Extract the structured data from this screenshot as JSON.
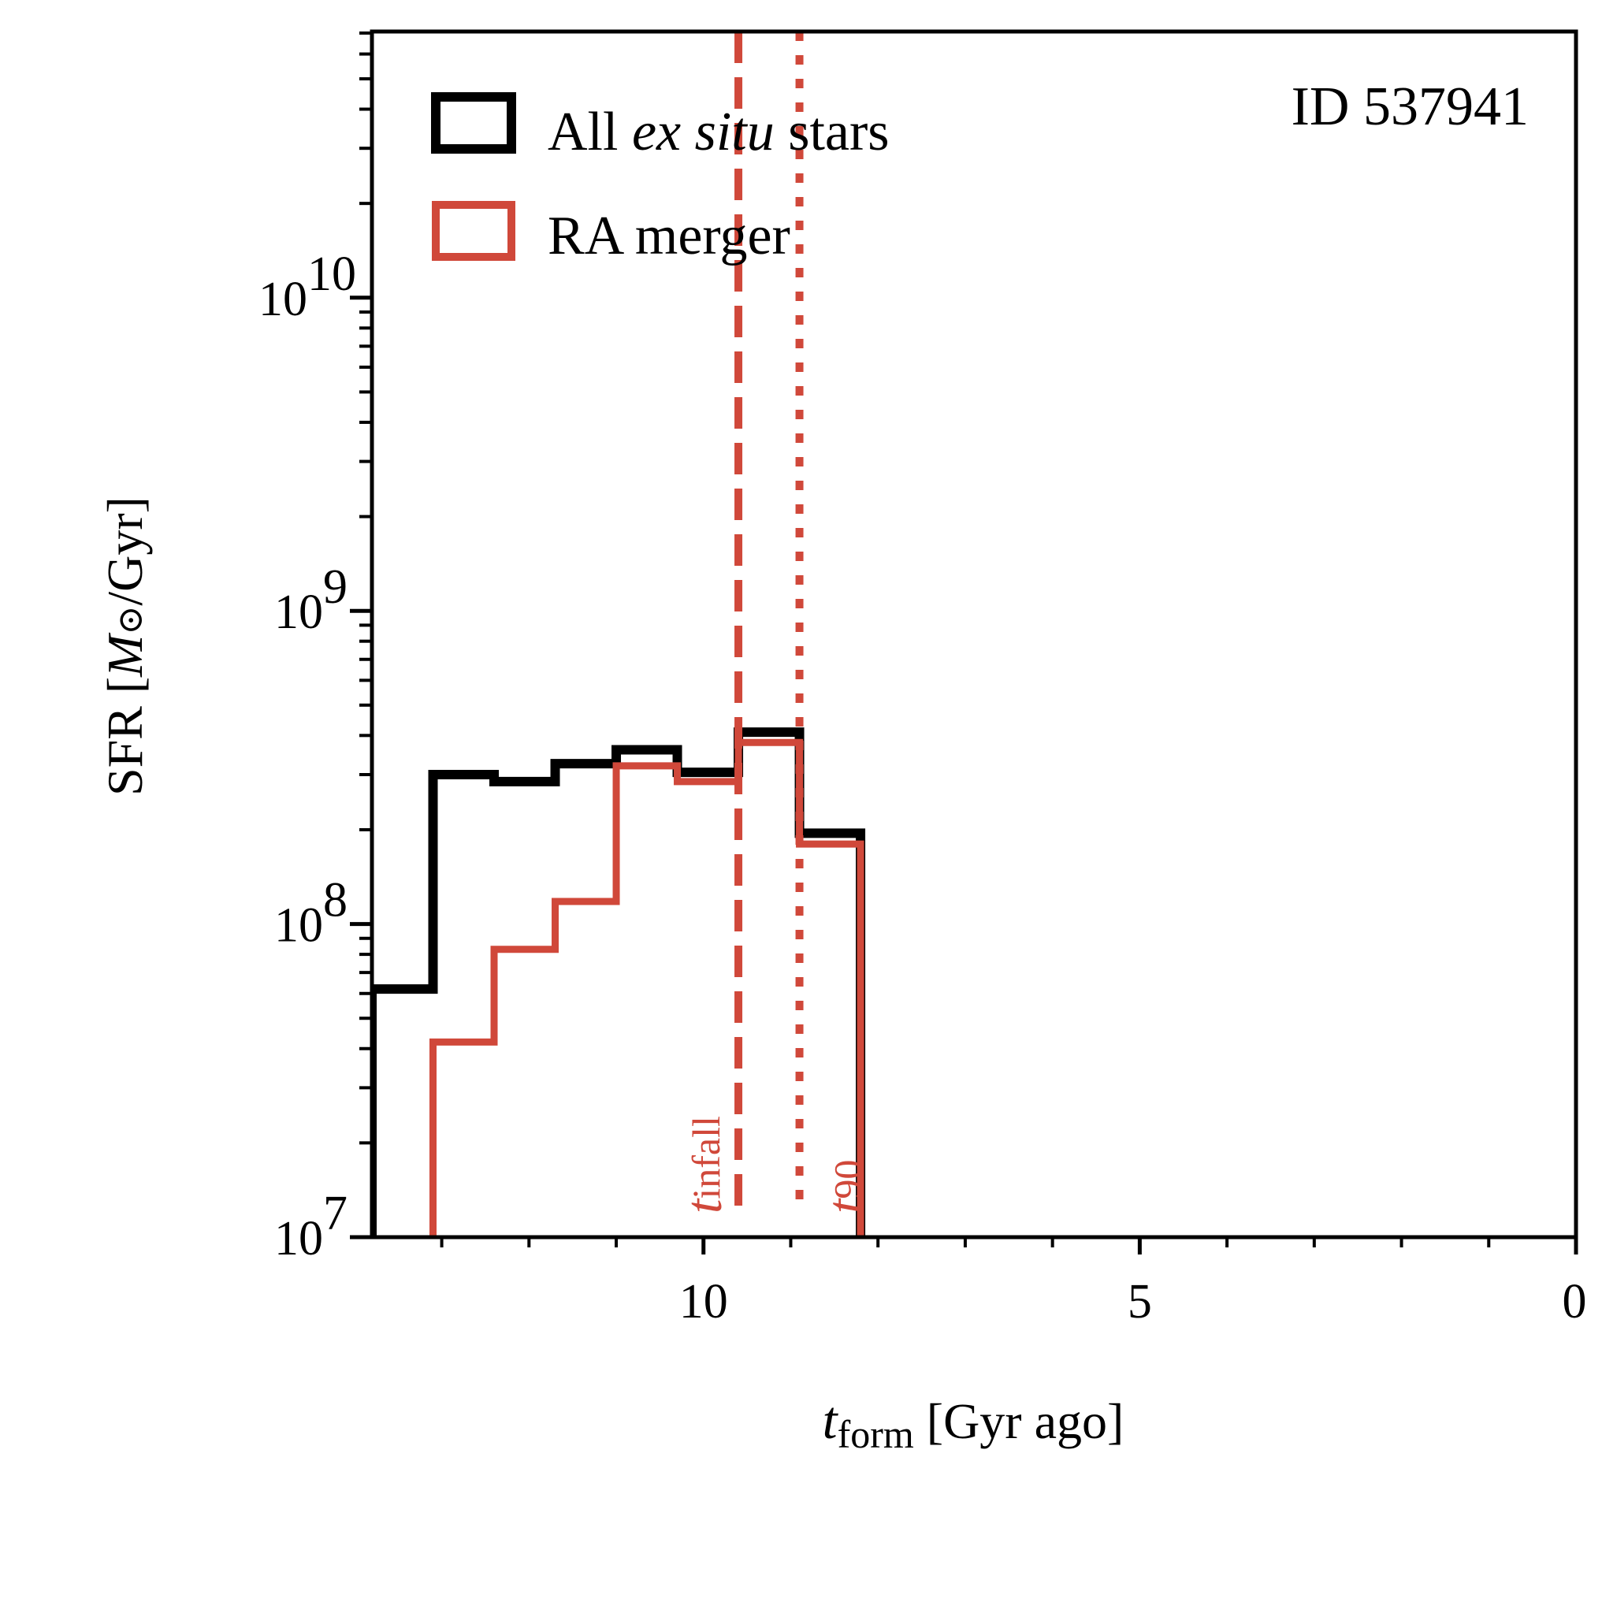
{
  "chart_data": {
    "type": "step-histogram",
    "id_label": "ID 537941",
    "xlabel": {
      "symbol": "t",
      "subscript": "form",
      "text": " [Gyr ago]"
    },
    "ylabel": {
      "prefix": "SFR [",
      "symbol": "M",
      "sun": "⊙",
      "suffix": "/Gyr]"
    },
    "xlim": [
      13.8,
      0
    ],
    "ylim_log10": [
      7,
      10.85
    ],
    "yscale": "log",
    "x_ticks": [
      {
        "value": 10,
        "label": "10"
      },
      {
        "value": 5,
        "label": "5"
      },
      {
        "value": 0,
        "label": "0"
      }
    ],
    "y_ticks": [
      {
        "exp": 7,
        "base": "10",
        "sup": "7"
      },
      {
        "exp": 8,
        "base": "10",
        "sup": "8"
      },
      {
        "exp": 9,
        "base": "10",
        "sup": "9"
      },
      {
        "exp": 10,
        "base": "10",
        "sup": "10"
      }
    ],
    "bin_edges": [
      13.8,
      13.1,
      12.4,
      11.7,
      11.0,
      10.3,
      9.6,
      8.9,
      8.2
    ],
    "series": [
      {
        "name": "All ex situ stars",
        "legend_parts": [
          "All ",
          "ex situ",
          " stars"
        ],
        "color": "#000000",
        "values": [
          62000000.0,
          300000000.0,
          285000000.0,
          325000000.0,
          360000000.0,
          305000000.0,
          410000000.0,
          195000000.0
        ]
      },
      {
        "name": "RA merger",
        "legend_parts": [
          "RA merger"
        ],
        "color": "#d0483a",
        "values": [
          0,
          42000000.0,
          83000000.0,
          118000000.0,
          320000000.0,
          285000000.0,
          380000000.0,
          180000000.0
        ]
      }
    ],
    "vlines": [
      {
        "name": "t_infall",
        "value": 9.6,
        "style": "dashed",
        "symbol": "t",
        "subscript": "infall",
        "color": "#d0483a"
      },
      {
        "name": "t_90",
        "value": 8.9,
        "style": "dotted",
        "symbol": "t",
        "subscript": "90",
        "color": "#d0483a"
      }
    ],
    "legend_position": "top-left"
  }
}
